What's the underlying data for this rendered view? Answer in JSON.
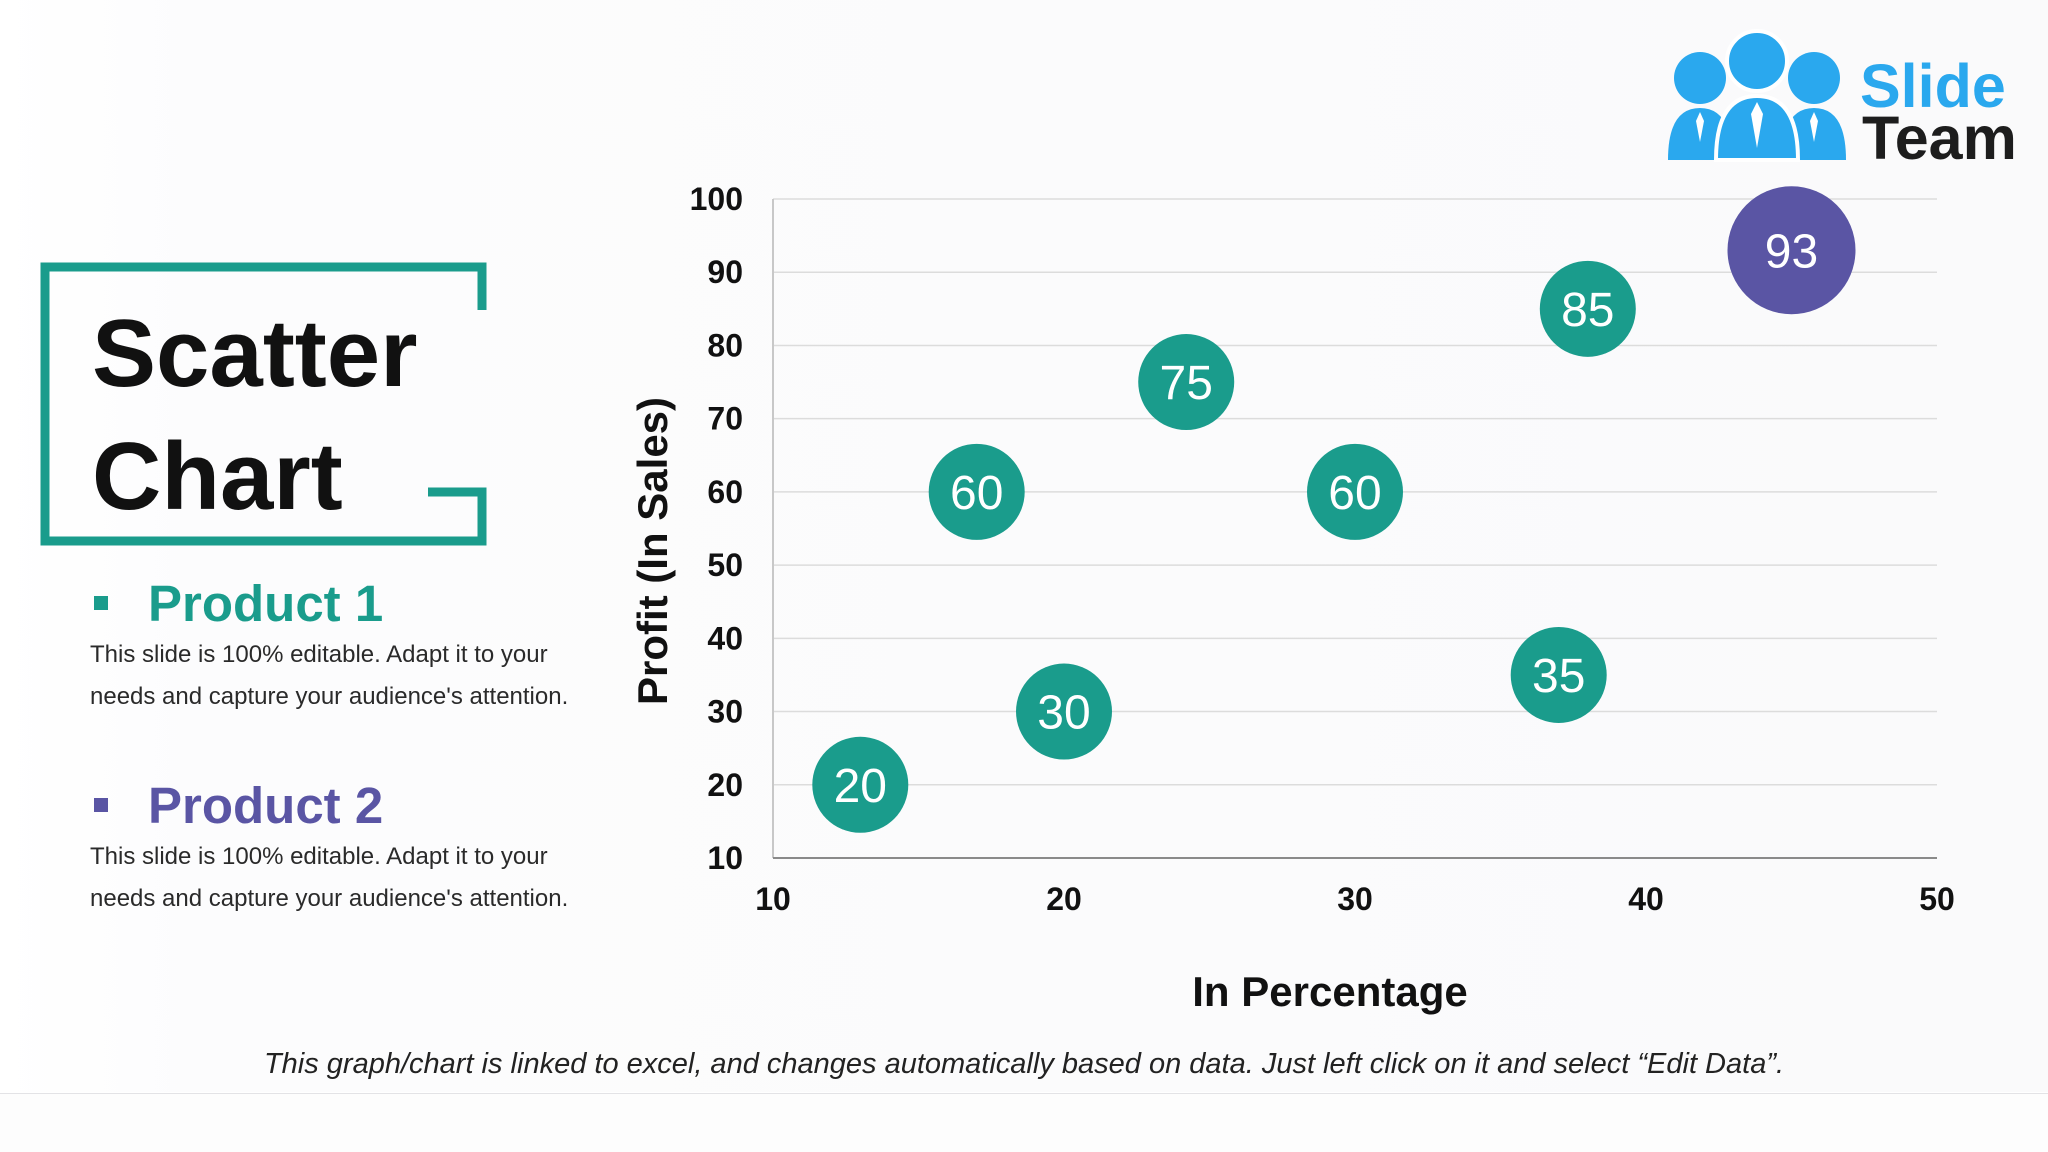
{
  "logo": {
    "word1": "Slide",
    "word2": "Team",
    "colors": {
      "accent": "#2aa8ee",
      "text": "#1d1d1d"
    }
  },
  "title": {
    "line1": "Scatter",
    "line2": "Chart",
    "frame_color": "#1a9c8c"
  },
  "products": [
    {
      "name": "Product 1",
      "color": "#1a9c8c",
      "desc_line1": "This slide is 100% editable. Adapt it to your",
      "desc_line2": "needs and capture your audience's attention."
    },
    {
      "name": "Product 2",
      "color": "#5a55a4",
      "desc_line1": "This slide is 100% editable. Adapt it to your",
      "desc_line2": "needs and capture your audience's attention."
    }
  ],
  "chart_data": {
    "type": "scatter",
    "xlabel": "In Percentage",
    "ylabel": "Profit (In Sales)",
    "xlim": [
      10,
      50
    ],
    "ylim": [
      10,
      100
    ],
    "x_ticks": [
      10,
      20,
      30,
      40,
      50
    ],
    "y_ticks": [
      10,
      20,
      30,
      40,
      50,
      60,
      70,
      80,
      90,
      100
    ],
    "grid": "horizontal",
    "series": [
      {
        "color": "#1a9c8c",
        "points": [
          {
            "x": 13,
            "y": 20,
            "label": "20"
          },
          {
            "x": 20,
            "y": 30,
            "label": "30"
          },
          {
            "x": 17,
            "y": 60,
            "label": "60"
          },
          {
            "x": 24.2,
            "y": 75,
            "label": "75"
          },
          {
            "x": 30,
            "y": 60,
            "label": "60"
          },
          {
            "x": 37,
            "y": 35,
            "label": "35"
          },
          {
            "x": 38,
            "y": 85,
            "label": "85"
          }
        ]
      },
      {
        "color": "#5a55a4",
        "points": [
          {
            "x": 45,
            "y": 93,
            "label": "93"
          }
        ]
      }
    ]
  },
  "footer_note": "This graph/chart is linked to excel, and changes automatically based on data. Just left click on it and select “Edit Data”."
}
